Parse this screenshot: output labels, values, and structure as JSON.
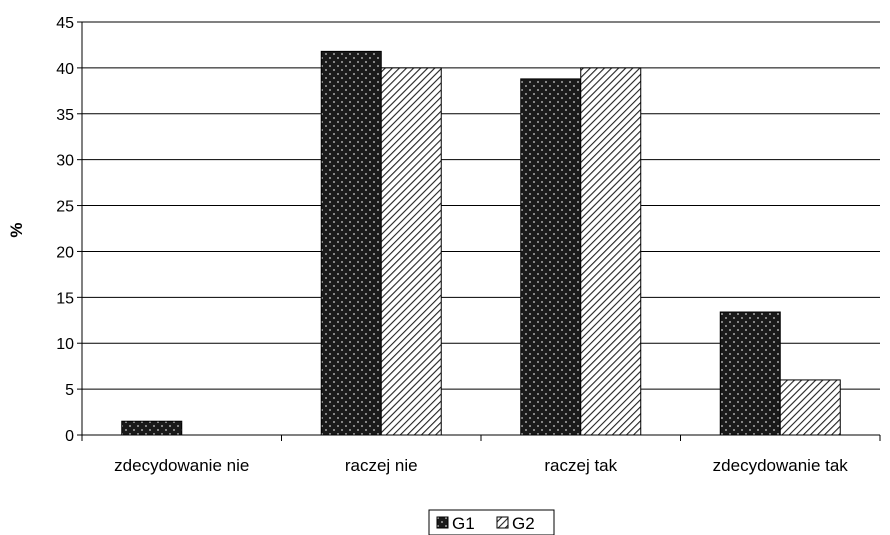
{
  "chart_data": {
    "type": "bar",
    "title": "",
    "xlabel": "",
    "ylabel": "%",
    "ylim": [
      0,
      45
    ],
    "yticks": [
      0,
      5,
      10,
      15,
      20,
      25,
      30,
      35,
      40,
      45
    ],
    "grid": true,
    "legend": "bottom",
    "categories": [
      "zdecydowanie nie",
      "raczej nie",
      "raczej tak",
      "zdecydowanie tak"
    ],
    "series": [
      {
        "name": "G1",
        "values": [
          1.5,
          41.8,
          38.8,
          13.4
        ],
        "pattern": "dotted-dark",
        "color": "#1a1a1a"
      },
      {
        "name": "G2",
        "values": [
          0,
          40.0,
          40.0,
          6.0
        ],
        "pattern": "diagonal-hatch",
        "color": "#ffffff"
      }
    ]
  }
}
